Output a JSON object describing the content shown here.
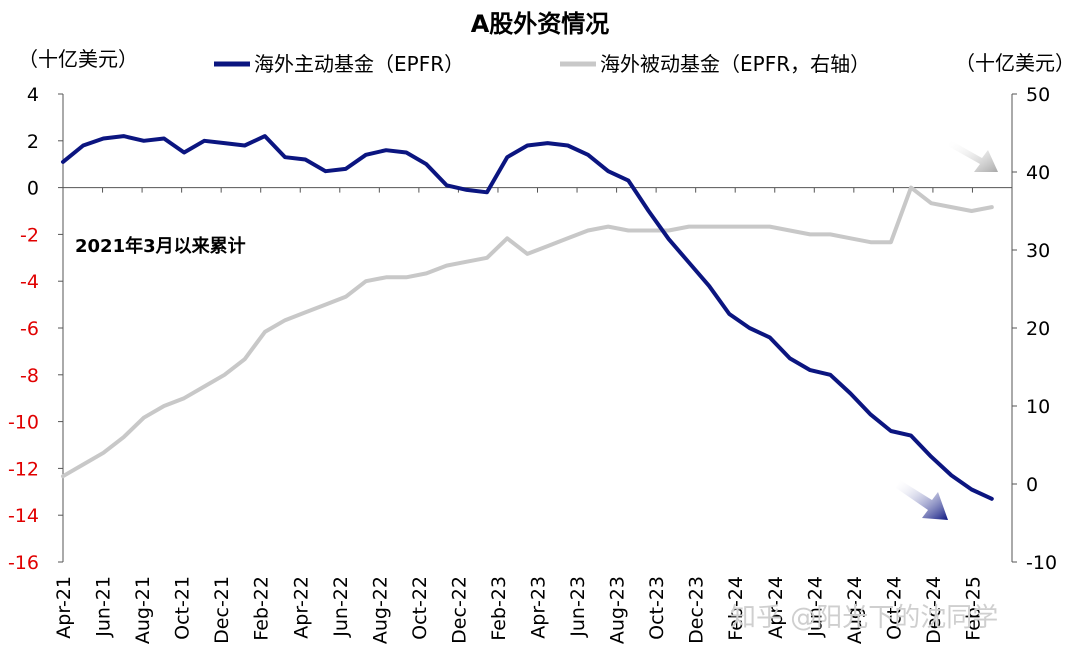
{
  "chart_data": {
    "type": "line",
    "title": "A股外资情况",
    "ylabel_left": "（十亿美元）",
    "ylabel_right": "（十亿美元）",
    "annotation": "2021年3月以来累计",
    "y_left": {
      "min": -16,
      "max": 4,
      "ticks": [
        4,
        2,
        0,
        -2,
        -4,
        -6,
        -8,
        -10,
        -12,
        -14,
        -16
      ],
      "tick_labels": [
        "4",
        "2",
        "0",
        "-2",
        "-4",
        "-6",
        "-8",
        "-10",
        "-12",
        "-14",
        "-16"
      ],
      "negative_color": "#e00000"
    },
    "y_right": {
      "min": -10,
      "max": 50,
      "ticks": [
        50,
        40,
        30,
        20,
        10,
        0,
        -10
      ],
      "tick_labels": [
        "50",
        "40",
        "30",
        "20",
        "10",
        "0",
        "-10"
      ]
    },
    "x_tick_labels": [
      "Apr-21",
      "Jun-21",
      "Aug-21",
      "Oct-21",
      "Dec-21",
      "Feb-22",
      "Apr-22",
      "Jun-22",
      "Aug-22",
      "Oct-22",
      "Dec-22",
      "Feb-23",
      "Apr-23",
      "Jun-23",
      "Aug-23",
      "Oct-23",
      "Dec-23",
      "Feb-24",
      "Apr-24",
      "Jun-24",
      "Aug-24",
      "Oct-24",
      "Dec-24",
      "Feb-25"
    ],
    "x_range": [
      "2021-04",
      "2025-03"
    ],
    "grid": false,
    "legend_position": "top",
    "series": [
      {
        "name": "海外主动基金（EPFR）",
        "axis": "left",
        "color": "#0b1580",
        "points": [
          [
            "2021-04",
            1.1
          ],
          [
            "2021-05",
            1.8
          ],
          [
            "2021-06",
            2.1
          ],
          [
            "2021-07",
            2.2
          ],
          [
            "2021-08",
            2.0
          ],
          [
            "2021-09",
            2.1
          ],
          [
            "2021-10",
            1.5
          ],
          [
            "2021-11",
            2.0
          ],
          [
            "2021-12",
            1.9
          ],
          [
            "2022-01",
            1.8
          ],
          [
            "2022-02",
            2.2
          ],
          [
            "2022-03",
            1.3
          ],
          [
            "2022-04",
            1.2
          ],
          [
            "2022-05",
            0.7
          ],
          [
            "2022-06",
            0.8
          ],
          [
            "2022-07",
            1.4
          ],
          [
            "2022-08",
            1.6
          ],
          [
            "2022-09",
            1.5
          ],
          [
            "2022-10",
            1.0
          ],
          [
            "2022-11",
            0.1
          ],
          [
            "2022-12",
            -0.1
          ],
          [
            "2023-01",
            -0.2
          ],
          [
            "2023-02",
            1.3
          ],
          [
            "2023-03",
            1.8
          ],
          [
            "2023-04",
            1.9
          ],
          [
            "2023-05",
            1.8
          ],
          [
            "2023-06",
            1.4
          ],
          [
            "2023-07",
            0.7
          ],
          [
            "2023-08",
            0.3
          ],
          [
            "2023-09",
            -1.0
          ],
          [
            "2023-10",
            -2.2
          ],
          [
            "2023-11",
            -3.2
          ],
          [
            "2023-12",
            -4.2
          ],
          [
            "2024-01",
            -5.4
          ],
          [
            "2024-02",
            -6.0
          ],
          [
            "2024-03",
            -6.4
          ],
          [
            "2024-04",
            -7.3
          ],
          [
            "2024-05",
            -7.8
          ],
          [
            "2024-06",
            -8.0
          ],
          [
            "2024-07",
            -8.8
          ],
          [
            "2024-08",
            -9.7
          ],
          [
            "2024-09",
            -10.4
          ],
          [
            "2024-10",
            -10.6
          ],
          [
            "2024-11",
            -11.5
          ],
          [
            "2024-12",
            -12.3
          ],
          [
            "2025-01",
            -12.9
          ],
          [
            "2025-02",
            -13.3
          ]
        ]
      },
      {
        "name": "海外被动基金（EPFR，右轴）",
        "axis": "right",
        "color": "#c8c8c8",
        "points": [
          [
            "2021-04",
            1.0
          ],
          [
            "2021-05",
            2.5
          ],
          [
            "2021-06",
            4.0
          ],
          [
            "2021-07",
            6.0
          ],
          [
            "2021-08",
            8.5
          ],
          [
            "2021-09",
            10.0
          ],
          [
            "2021-10",
            11.0
          ],
          [
            "2021-11",
            12.5
          ],
          [
            "2021-12",
            14.0
          ],
          [
            "2022-01",
            16.0
          ],
          [
            "2022-02",
            19.5
          ],
          [
            "2022-03",
            21.0
          ],
          [
            "2022-04",
            22.0
          ],
          [
            "2022-05",
            23.0
          ],
          [
            "2022-06",
            24.0
          ],
          [
            "2022-07",
            26.0
          ],
          [
            "2022-08",
            26.5
          ],
          [
            "2022-09",
            26.5
          ],
          [
            "2022-10",
            27.0
          ],
          [
            "2022-11",
            28.0
          ],
          [
            "2022-12",
            28.5
          ],
          [
            "2023-01",
            29.0
          ],
          [
            "2023-02",
            31.5
          ],
          [
            "2023-03",
            29.5
          ],
          [
            "2023-04",
            30.5
          ],
          [
            "2023-05",
            31.5
          ],
          [
            "2023-06",
            32.5
          ],
          [
            "2023-07",
            33.0
          ],
          [
            "2023-08",
            32.5
          ],
          [
            "2023-09",
            32.5
          ],
          [
            "2023-10",
            32.5
          ],
          [
            "2023-11",
            33.0
          ],
          [
            "2023-12",
            33.0
          ],
          [
            "2024-01",
            33.0
          ],
          [
            "2024-02",
            33.0
          ],
          [
            "2024-03",
            33.0
          ],
          [
            "2024-04",
            32.5
          ],
          [
            "2024-05",
            32.0
          ],
          [
            "2024-06",
            32.0
          ],
          [
            "2024-07",
            31.5
          ],
          [
            "2024-08",
            31.0
          ],
          [
            "2024-09",
            31.0
          ],
          [
            "2024-10",
            38.0
          ],
          [
            "2024-11",
            36.0
          ],
          [
            "2024-12",
            35.5
          ],
          [
            "2025-01",
            35.0
          ],
          [
            "2025-02",
            35.5
          ]
        ]
      }
    ]
  },
  "watermark": "知乎 @阳光下的沈同学"
}
